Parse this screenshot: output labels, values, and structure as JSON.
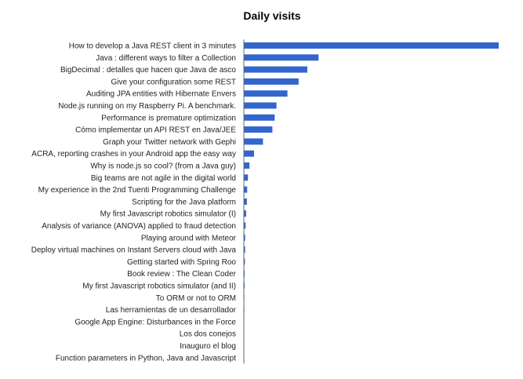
{
  "chart_data": {
    "type": "bar",
    "orientation": "horizontal",
    "title": "Daily visits",
    "xlabel": "",
    "ylabel": "",
    "grid": false,
    "legend": "none",
    "bar_color": "#3366cc",
    "axis_color": "#666666",
    "xlim": [
      0,
      100
    ],
    "categories": [
      "How to develop a Java REST client in 3 minutes",
      "Java : different ways to filter a Collection",
      "BigDecimal : detalles que hacen que Java de asco",
      "Give your configuration some REST",
      "Auditing JPA entities with Hibernate Envers",
      "Node.js running on my Raspberry Pi. A benchmark.",
      "Performance is premature optimization",
      "Cómo implementar un API REST en Java/JEE",
      "Graph your Twitter network with Gephi",
      "ACRA, reporting crashes in your Android app the easy way",
      "Why is node.js so cool? (from a Java guy)",
      "Big teams are not agile in the digital world",
      "My experience in the 2nd Tuenti Programming Challenge",
      "Scripting for the Java platform",
      "My first Javascript robotics simulator (I)",
      "Analysis of variance (ANOVA) applied to fraud detection",
      "Playing around with Meteor",
      "Deploy virtual machines on Instant Servers cloud with Java",
      "Getting started with Spring Roo",
      "Book review : The Clean Coder",
      "My first Javascript robotics simulator (and II)",
      "To ORM or not to ORM",
      "Las herramientas de un desarrollador",
      "Google App Engine: Disturbances in the Force",
      "Los dos conejos",
      "Inauguro el blog",
      "Function parameters in Python, Java and Javascript"
    ],
    "values": [
      100,
      29.3,
      24.9,
      21.5,
      17.1,
      12.8,
      12.1,
      11.2,
      7.5,
      4.0,
      2.2,
      1.6,
      1.3,
      1.2,
      0.9,
      0.7,
      0.5,
      0.5,
      0.4,
      0.3,
      0.3,
      0.2,
      0.2,
      0.1,
      0.1,
      0.1,
      0.1
    ]
  }
}
